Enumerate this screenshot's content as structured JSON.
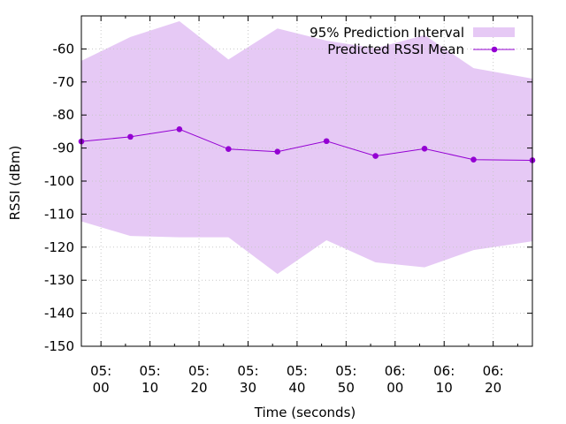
{
  "chart_data": {
    "type": "line",
    "title": "",
    "xlabel": "Time (seconds)",
    "ylabel": "RSSI (dBm)",
    "ylim": [
      -150,
      -50
    ],
    "y_ticks": [
      -150,
      -140,
      -130,
      -120,
      -110,
      -100,
      -90,
      -80,
      -70,
      -60
    ],
    "x_unit": "seconds",
    "xlim": [
      296,
      388
    ],
    "x_ticks": [
      {
        "value": 300,
        "label_line1": "05:",
        "label_line2": "00"
      },
      {
        "value": 310,
        "label_line1": "05:",
        "label_line2": "10"
      },
      {
        "value": 320,
        "label_line1": "05:",
        "label_line2": "20"
      },
      {
        "value": 330,
        "label_line1": "05:",
        "label_line2": "30"
      },
      {
        "value": 340,
        "label_line1": "05:",
        "label_line2": "40"
      },
      {
        "value": 350,
        "label_line1": "05:",
        "label_line2": "50"
      },
      {
        "value": 360,
        "label_line1": "06:",
        "label_line2": "00"
      },
      {
        "value": 370,
        "label_line1": "06:",
        "label_line2": "10"
      },
      {
        "value": 380,
        "label_line1": "06:",
        "label_line2": "20"
      }
    ],
    "grid": true,
    "legend_position": "top-right",
    "series": [
      {
        "name": "95% Prediction Interval",
        "kind": "band",
        "color": "#e6c9f5",
        "x": [
          296,
          306,
          316,
          326,
          336,
          346,
          356,
          366,
          376,
          388
        ],
        "lower": [
          -112.2,
          -116.6,
          -117.0,
          -117.0,
          -128.1,
          -117.9,
          -124.6,
          -126.1,
          -120.9,
          -118.2
        ],
        "upper": [
          -63.6,
          -56.4,
          -51.6,
          -63.2,
          -53.8,
          -57.5,
          -59.8,
          -55.8,
          -65.8,
          -69.0
        ]
      },
      {
        "name": "Predicted RSSI Mean",
        "kind": "line",
        "color": "#9400d3",
        "x": [
          296,
          306,
          316,
          326,
          336,
          346,
          356,
          366,
          376,
          388
        ],
        "values": [
          -88.0,
          -86.6,
          -84.3,
          -90.3,
          -91.1,
          -87.9,
          -92.4,
          -90.2,
          -93.5,
          -93.7
        ]
      }
    ]
  }
}
